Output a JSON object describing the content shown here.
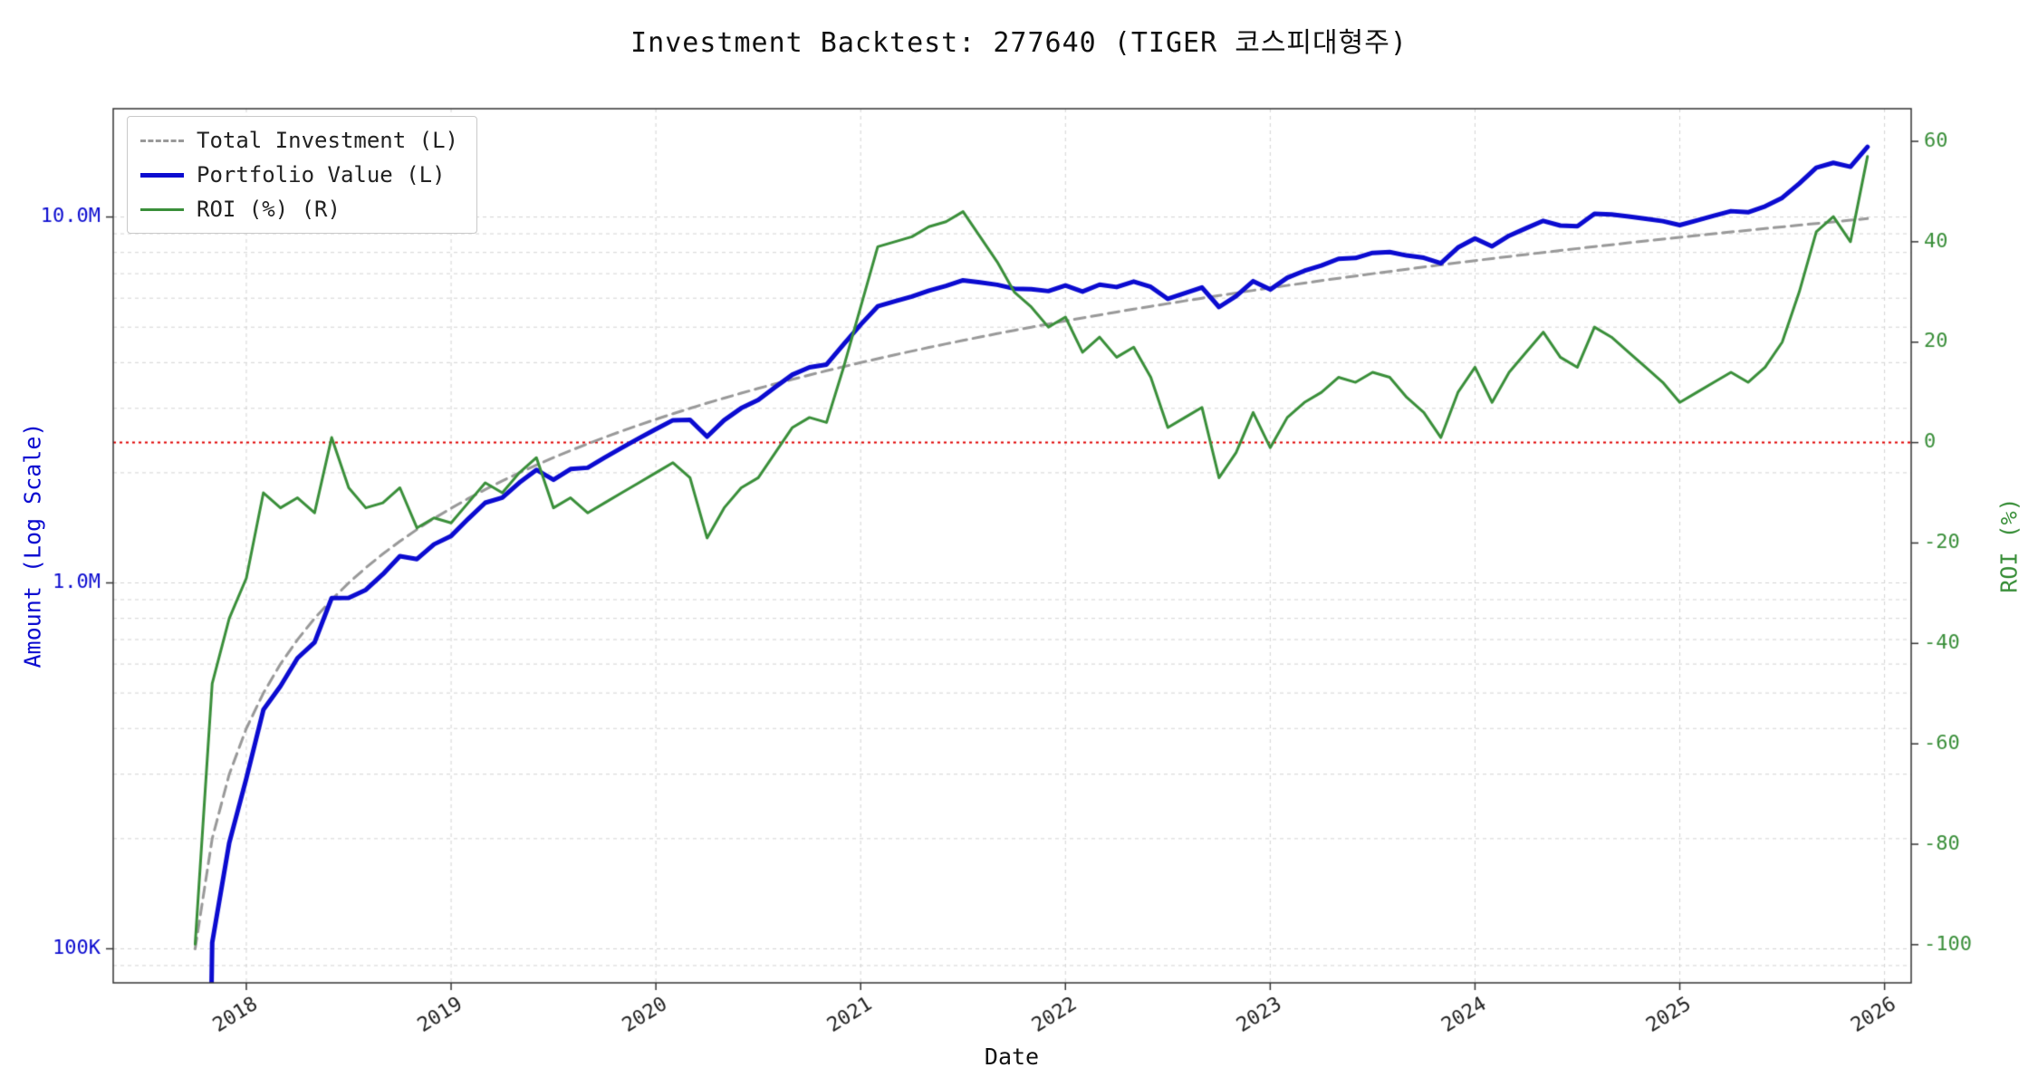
{
  "title": "Investment Backtest: 277640 (TIGER 코스피대형주)",
  "axes": {
    "x_label": "Date",
    "left_label": "Amount (Log Scale)",
    "right_label": "ROI (%)",
    "x_ticks": [
      {
        "value": 2018,
        "label": "2018"
      },
      {
        "value": 2019,
        "label": "2019"
      },
      {
        "value": 2020,
        "label": "2020"
      },
      {
        "value": 2021,
        "label": "2021"
      },
      {
        "value": 2022,
        "label": "2022"
      },
      {
        "value": 2023,
        "label": "2023"
      },
      {
        "value": 2024,
        "label": "2024"
      },
      {
        "value": 2025,
        "label": "2025"
      },
      {
        "value": 2026,
        "label": "2026"
      }
    ],
    "left_ticks": [
      {
        "value": 100000,
        "label": "100K"
      },
      {
        "value": 1000000,
        "label": "1.0M"
      },
      {
        "value": 10000000,
        "label": "10.0M"
      }
    ],
    "right_ticks": [
      {
        "value": 60,
        "label": "60"
      },
      {
        "value": 40,
        "label": "40"
      },
      {
        "value": 20,
        "label": "20"
      },
      {
        "value": 0,
        "label": "0"
      },
      {
        "value": -20,
        "label": "-20"
      },
      {
        "value": -40,
        "label": "-40"
      },
      {
        "value": -60,
        "label": "-60"
      },
      {
        "value": -80,
        "label": "-80"
      },
      {
        "value": -100,
        "label": "-100"
      }
    ],
    "x_range": [
      2017.35,
      2026.13
    ],
    "left_log_range": [
      4.907,
      7.296
    ],
    "right_range": [
      -107.6,
      66.5
    ],
    "zero_line": {
      "axis": "right",
      "value": 0
    }
  },
  "colors": {
    "blue": "#0b0bd0",
    "green": "#3a8f3a",
    "gray": "#999999",
    "red": "#e00000",
    "grid": "#d4d4d4",
    "spine": "#333333",
    "tick_text": "#222222"
  },
  "legend": [
    {
      "label": "Total Investment (L)",
      "color": "#999999",
      "style": "dashed",
      "width": 3
    },
    {
      "label": "Portfolio Value (L)",
      "color": "#0b0bd0",
      "style": "solid",
      "width": 5
    },
    {
      "label": "ROI (%) (R)",
      "color": "#3a8f3a",
      "style": "solid",
      "width": 3
    }
  ],
  "chart_data": {
    "type": "line",
    "x_unit": "month",
    "amount_unit": "M KRW",
    "x": [
      "2017-09",
      "2017-10",
      "2017-11",
      "2017-12",
      "2018-01",
      "2018-02",
      "2018-03",
      "2018-04",
      "2018-05",
      "2018-06",
      "2018-07",
      "2018-08",
      "2018-09",
      "2018-10",
      "2018-11",
      "2018-12",
      "2019-01",
      "2019-02",
      "2019-03",
      "2019-04",
      "2019-05",
      "2019-06",
      "2019-07",
      "2019-08",
      "2019-09",
      "2019-10",
      "2019-11",
      "2019-12",
      "2020-01",
      "2020-02",
      "2020-03",
      "2020-04",
      "2020-05",
      "2020-06",
      "2020-07",
      "2020-08",
      "2020-09",
      "2020-10",
      "2020-11",
      "2020-12",
      "2021-01",
      "2021-02",
      "2021-03",
      "2021-04",
      "2021-05",
      "2021-06",
      "2021-07",
      "2021-08",
      "2021-09",
      "2021-10",
      "2021-11",
      "2021-12",
      "2022-01",
      "2022-02",
      "2022-03",
      "2022-04",
      "2022-05",
      "2022-06",
      "2022-07",
      "2022-08",
      "2022-09",
      "2022-10",
      "2022-11",
      "2022-12",
      "2023-01",
      "2023-02",
      "2023-03",
      "2023-04",
      "2023-05",
      "2023-06",
      "2023-07",
      "2023-08",
      "2023-09",
      "2023-10",
      "2023-11",
      "2023-12",
      "2024-01",
      "2024-02",
      "2024-03",
      "2024-04",
      "2024-05",
      "2024-06",
      "2024-07",
      "2024-08",
      "2024-09",
      "2024-10",
      "2024-11",
      "2024-12",
      "2025-01",
      "2025-02",
      "2025-03",
      "2025-04",
      "2025-05",
      "2025-06",
      "2025-07",
      "2025-08",
      "2025-09",
      "2025-10",
      "2025-11"
    ],
    "series": [
      {
        "name": "Total Investment (L)",
        "axis": "left",
        "values_m": [
          0.1,
          0.2,
          0.3,
          0.4,
          0.5,
          0.6,
          0.7,
          0.8,
          0.9,
          1.0,
          1.1,
          1.2,
          1.3,
          1.4,
          1.5,
          1.6,
          1.7,
          1.8,
          1.9,
          2.0,
          2.1,
          2.2,
          2.3,
          2.4,
          2.5,
          2.6,
          2.7,
          2.8,
          2.9,
          3.0,
          3.1,
          3.2,
          3.3,
          3.4,
          3.5,
          3.6,
          3.7,
          3.8,
          3.9,
          4.0,
          4.1,
          4.2,
          4.3,
          4.4,
          4.5,
          4.6,
          4.7,
          4.8,
          4.9,
          5.0,
          5.1,
          5.2,
          5.3,
          5.4,
          5.5,
          5.6,
          5.7,
          5.8,
          5.9,
          6.0,
          6.1,
          6.2,
          6.3,
          6.4,
          6.5,
          6.6,
          6.7,
          6.8,
          6.9,
          7.0,
          7.1,
          7.2,
          7.3,
          7.4,
          7.5,
          7.6,
          7.7,
          7.8,
          7.9,
          8.0,
          8.1,
          8.2,
          8.3,
          8.4,
          8.5,
          8.6,
          8.7,
          8.8,
          8.9,
          9.0,
          9.1,
          9.2,
          9.3,
          9.4,
          9.5,
          9.6,
          9.7,
          9.8,
          9.9
        ]
      },
      {
        "name": "Portfolio Value (L)",
        "axis": "left",
        "values_m": [
          0.0001,
          0.104,
          0.195,
          0.292,
          0.45,
          0.522,
          0.623,
          0.688,
          0.909,
          0.91,
          0.957,
          1.056,
          1.183,
          1.162,
          1.275,
          1.344,
          1.496,
          1.656,
          1.71,
          1.88,
          2.037,
          1.914,
          2.047,
          2.064,
          2.2,
          2.34,
          2.484,
          2.632,
          2.784,
          2.79,
          2.511,
          2.784,
          3.003,
          3.162,
          3.43,
          3.708,
          3.885,
          3.952,
          4.485,
          5.08,
          5.699,
          5.88,
          6.063,
          6.292,
          6.48,
          6.716,
          6.627,
          6.528,
          6.37,
          6.35,
          6.273,
          6.5,
          6.254,
          6.534,
          6.435,
          6.664,
          6.441,
          5.974,
          6.195,
          6.42,
          5.673,
          6.076,
          6.678,
          6.336,
          6.825,
          7.128,
          7.37,
          7.684,
          7.728,
          7.98,
          8.023,
          7.848,
          7.738,
          7.474,
          8.25,
          8.74,
          8.316,
          8.892,
          9.322,
          9.76,
          9.477,
          9.43,
          10.209,
          10.164,
          10.03,
          9.89,
          9.744,
          9.504,
          9.79,
          10.08,
          10.374,
          10.304,
          10.695,
          11.28,
          12.35,
          13.632,
          14.065,
          13.72,
          15.543
        ]
      },
      {
        "name": "ROI (%) (R)",
        "axis": "right",
        "values_pct": [
          -99.9,
          -48,
          -35,
          -27,
          -10,
          -13,
          -11,
          -14,
          1,
          -9,
          -13,
          -12,
          -9,
          -17,
          -15,
          -16,
          -12,
          -8,
          -10,
          -6,
          -3,
          -13,
          -11,
          -14,
          -12,
          -10,
          -8,
          -6,
          -4,
          -7,
          -19,
          -13,
          -9,
          -7,
          -2,
          3,
          5,
          4,
          15,
          27,
          39,
          40,
          41,
          43,
          44,
          46,
          41,
          36,
          30,
          27,
          23,
          25,
          18,
          21,
          17,
          19,
          13,
          3,
          5,
          7,
          -7,
          -2,
          6,
          -1,
          5,
          8,
          10,
          13,
          12,
          14,
          13,
          9,
          6,
          1,
          10,
          15,
          8,
          14,
          18,
          22,
          17,
          15,
          23,
          21,
          18,
          15,
          12,
          8,
          10,
          12,
          14,
          12,
          15,
          20,
          30,
          42,
          45,
          40,
          57
        ]
      }
    ]
  }
}
